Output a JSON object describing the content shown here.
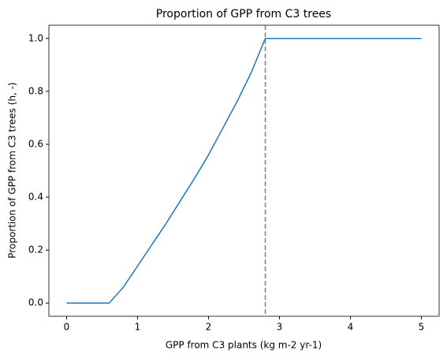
{
  "chart_data": {
    "type": "line",
    "title": "Proportion of GPP from C3 trees",
    "xlabel": "GPP from C3 plants (kg m-2 yr-1)",
    "ylabel": "Proportion of GPP from C3 trees (h, -)",
    "x": [
      0,
      0.6,
      0.8,
      1.0,
      1.2,
      1.4,
      1.6,
      1.8,
      2.0,
      2.2,
      2.4,
      2.6,
      2.8,
      5
    ],
    "series": [
      {
        "color": "#1f77b4",
        "values": [
          0,
          0,
          0.06,
          0.14,
          0.22,
          0.3,
          0.385,
          0.47,
          0.56,
          0.66,
          0.76,
          0.87,
          1.0,
          1.0
        ]
      }
    ],
    "vline": {
      "x": 2.8,
      "color": "#808080",
      "dashed": true
    },
    "xlim": [
      -0.25,
      5.25
    ],
    "ylim": [
      -0.05,
      1.05
    ],
    "xticks": [
      0,
      1,
      2,
      3,
      4,
      5
    ],
    "yticks": [
      {
        "value": 0,
        "label": "0.0"
      },
      {
        "value": 0.2,
        "label": "0.2"
      },
      {
        "value": 0.4,
        "label": "0.4"
      },
      {
        "value": 0.6,
        "label": "0.6"
      },
      {
        "value": 0.8,
        "label": "0.8"
      },
      {
        "value": 1.0,
        "label": "1.0"
      }
    ]
  }
}
